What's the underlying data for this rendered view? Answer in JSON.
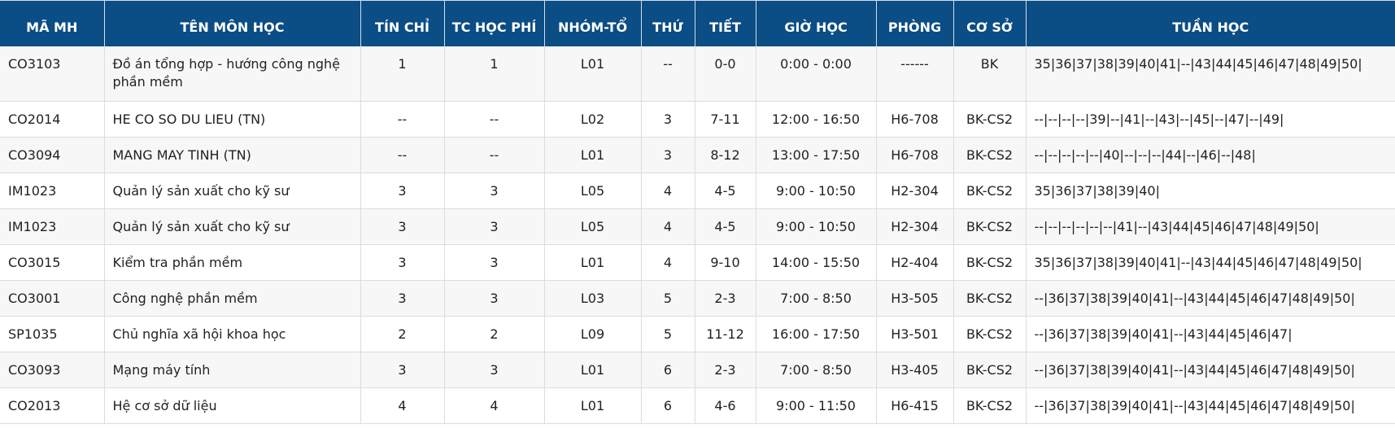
{
  "headers": {
    "ma_mh": "MÃ MH",
    "ten_mon_hoc": "TÊN MÔN HỌC",
    "tin_chi": "TÍN CHỈ",
    "tc_hoc_phi": "TC HỌC PHÍ",
    "nhom_to": "NHÓM-TỔ",
    "thu": "THỨ",
    "tiet": "TIẾT",
    "gio_hoc": "GIỜ HỌC",
    "phong": "PHÒNG",
    "co_so": "CƠ SỞ",
    "tuan_hoc": "TUẦN HỌC"
  },
  "rows": [
    {
      "ma_mh": "CO3103",
      "ten_mon_hoc": "Đồ án tổng hợp - hướng công nghệ phần mềm",
      "tin_chi": "1",
      "tc_hoc_phi": "1",
      "nhom_to": "L01",
      "thu": "--",
      "tiet": "0-0",
      "gio_hoc": "0:00 - 0:00",
      "phong": "------",
      "co_so": "BK",
      "tuan_hoc": "35|36|37|38|39|40|41|--|43|44|45|46|47|48|49|50|"
    },
    {
      "ma_mh": "CO2014",
      "ten_mon_hoc": "HE CO SO DU LIEU (TN)",
      "tin_chi": "--",
      "tc_hoc_phi": "--",
      "nhom_to": "L02",
      "thu": "3",
      "tiet": "7-11",
      "gio_hoc": "12:00 - 16:50",
      "phong": "H6-708",
      "co_so": "BK-CS2",
      "tuan_hoc": "--|--|--|--|39|--|41|--|43|--|45|--|47|--|49|"
    },
    {
      "ma_mh": "CO3094",
      "ten_mon_hoc": "MANG MAY TINH (TN)",
      "tin_chi": "--",
      "tc_hoc_phi": "--",
      "nhom_to": "L01",
      "thu": "3",
      "tiet": "8-12",
      "gio_hoc": "13:00 - 17:50",
      "phong": "H6-708",
      "co_so": "BK-CS2",
      "tuan_hoc": "--|--|--|--|--|40|--|--|--|44|--|46|--|48|"
    },
    {
      "ma_mh": "IM1023",
      "ten_mon_hoc": "Quản lý sản xuất cho kỹ sư",
      "tin_chi": "3",
      "tc_hoc_phi": "3",
      "nhom_to": "L05",
      "thu": "4",
      "tiet": "4-5",
      "gio_hoc": "9:00 - 10:50",
      "phong": "H2-304",
      "co_so": "BK-CS2",
      "tuan_hoc": "35|36|37|38|39|40|"
    },
    {
      "ma_mh": "IM1023",
      "ten_mon_hoc": "Quản lý sản xuất cho kỹ sư",
      "tin_chi": "3",
      "tc_hoc_phi": "3",
      "nhom_to": "L05",
      "thu": "4",
      "tiet": "4-5",
      "gio_hoc": "9:00 - 10:50",
      "phong": "H2-304",
      "co_so": "BK-CS2",
      "tuan_hoc": "--|--|--|--|--|--|41|--|43|44|45|46|47|48|49|50|"
    },
    {
      "ma_mh": "CO3015",
      "ten_mon_hoc": "Kiểm tra phần mềm",
      "tin_chi": "3",
      "tc_hoc_phi": "3",
      "nhom_to": "L01",
      "thu": "4",
      "tiet": "9-10",
      "gio_hoc": "14:00 - 15:50",
      "phong": "H2-404",
      "co_so": "BK-CS2",
      "tuan_hoc": "35|36|37|38|39|40|41|--|43|44|45|46|47|48|49|50|"
    },
    {
      "ma_mh": "CO3001",
      "ten_mon_hoc": "Công nghệ phần mềm",
      "tin_chi": "3",
      "tc_hoc_phi": "3",
      "nhom_to": "L03",
      "thu": "5",
      "tiet": "2-3",
      "gio_hoc": "7:00 - 8:50",
      "phong": "H3-505",
      "co_so": "BK-CS2",
      "tuan_hoc": "--|36|37|38|39|40|41|--|43|44|45|46|47|48|49|50|"
    },
    {
      "ma_mh": "SP1035",
      "ten_mon_hoc": "Chủ nghĩa xã hội khoa học",
      "tin_chi": "2",
      "tc_hoc_phi": "2",
      "nhom_to": "L09",
      "thu": "5",
      "tiet": "11-12",
      "gio_hoc": "16:00 - 17:50",
      "phong": "H3-501",
      "co_so": "BK-CS2",
      "tuan_hoc": "--|36|37|38|39|40|41|--|43|44|45|46|47|"
    },
    {
      "ma_mh": "CO3093",
      "ten_mon_hoc": "Mạng máy tính",
      "tin_chi": "3",
      "tc_hoc_phi": "3",
      "nhom_to": "L01",
      "thu": "6",
      "tiet": "2-3",
      "gio_hoc": "7:00 - 8:50",
      "phong": "H3-405",
      "co_so": "BK-CS2",
      "tuan_hoc": "--|36|37|38|39|40|41|--|43|44|45|46|47|48|49|50|"
    },
    {
      "ma_mh": "CO2013",
      "ten_mon_hoc": "Hệ cơ sở dữ liệu",
      "tin_chi": "4",
      "tc_hoc_phi": "4",
      "nhom_to": "L01",
      "thu": "6",
      "tiet": "4-6",
      "gio_hoc": "9:00 - 11:50",
      "phong": "H6-415",
      "co_so": "BK-CS2",
      "tuan_hoc": "--|36|37|38|39|40|41|--|43|44|45|46|47|48|49|50|"
    }
  ]
}
